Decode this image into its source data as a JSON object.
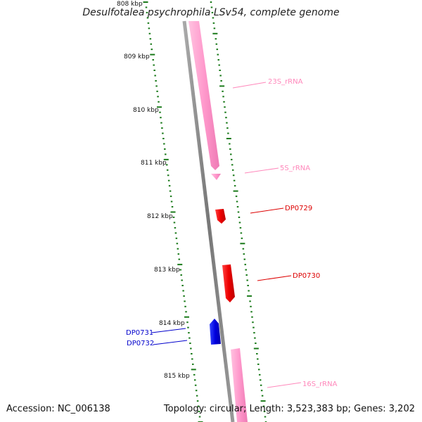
{
  "title": "Desulfotalea psychrophila LSv54, complete genome",
  "footer": {
    "accession": "Accession: NC_006138",
    "summary": "Topology: circular; Length: 3,523,383 bp; Genes: 3,202"
  },
  "scale": {
    "labels": [
      "808 kbp",
      "809 kbp",
      "810 kbp",
      "811 kbp",
      "812 kbp",
      "813 kbp",
      "814 kbp",
      "815 kbp"
    ]
  },
  "features": [
    {
      "name": "23S_rRNA",
      "type": "rRNA",
      "strand": "+",
      "color": "#ff99cc"
    },
    {
      "name": "5S_rRNA",
      "type": "rRNA",
      "strand": "+",
      "color": "#ff99cc"
    },
    {
      "name": "DP0729",
      "type": "gene",
      "strand": "+",
      "color": "#dd0000"
    },
    {
      "name": "DP0730",
      "type": "gene",
      "strand": "+",
      "color": "#dd0000"
    },
    {
      "name": "DP0731",
      "type": "gene",
      "strand": "-",
      "color": "#0000cc"
    },
    {
      "name": "DP0732",
      "type": "gene",
      "strand": "-",
      "color": "#0000cc"
    },
    {
      "name": "16S_rRNA",
      "type": "rRNA",
      "strand": "+",
      "color": "#ff99cc"
    }
  ],
  "colors": {
    "backbone": "#888888",
    "ticks": "#1a7a1a",
    "rrna": "#ff99cc",
    "forward_gene": "#dd0000",
    "reverse_gene": "#0000cc"
  }
}
